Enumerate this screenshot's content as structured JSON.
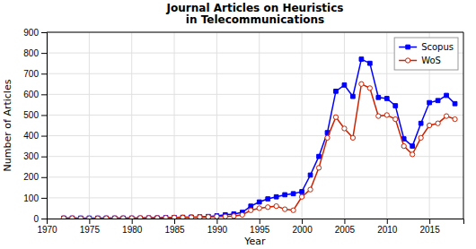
{
  "chart_data": {
    "type": "line",
    "title": "Journal Articles on Heuristics\nin Telecommunications",
    "xlabel": "Year",
    "ylabel": "Number of Articles",
    "x": [
      1972,
      1973,
      1974,
      1975,
      1976,
      1977,
      1978,
      1979,
      1980,
      1981,
      1982,
      1983,
      1984,
      1985,
      1986,
      1987,
      1988,
      1989,
      1990,
      1991,
      1992,
      1993,
      1994,
      1995,
      1996,
      1997,
      1998,
      1999,
      2000,
      2001,
      2002,
      2003,
      2004,
      2005,
      2006,
      2007,
      2008,
      2009,
      2010,
      2011,
      2012,
      2013,
      2014,
      2015,
      2016,
      2017,
      2018
    ],
    "series": [
      {
        "name": "Scopus",
        "color": "#0000FF",
        "marker": "square",
        "values": [
          2,
          2,
          2,
          2,
          2,
          2,
          2,
          2,
          2,
          2,
          3,
          3,
          4,
          5,
          6,
          7,
          8,
          10,
          13,
          18,
          22,
          30,
          60,
          80,
          95,
          105,
          115,
          120,
          130,
          210,
          300,
          415,
          615,
          645,
          590,
          770,
          750,
          585,
          580,
          545,
          385,
          350,
          460,
          560,
          570,
          595,
          555
        ]
      },
      {
        "name": "WoS",
        "color": "#CC2200",
        "marker": "circle",
        "values": [
          2,
          2,
          1,
          1,
          1,
          2,
          2,
          2,
          2,
          3,
          3,
          3,
          4,
          5,
          5,
          6,
          7,
          8,
          10,
          10,
          12,
          18,
          40,
          50,
          55,
          60,
          45,
          40,
          105,
          140,
          245,
          390,
          490,
          435,
          390,
          650,
          630,
          495,
          500,
          480,
          350,
          310,
          390,
          450,
          460,
          495,
          480
        ]
      }
    ],
    "xlim": [
      1970,
      2019
    ],
    "xticks": [
      1970,
      1975,
      1980,
      1985,
      1990,
      1995,
      2000,
      2005,
      2010,
      2015
    ],
    "ylim": [
      0,
      900
    ],
    "yticks": [
      0,
      100,
      200,
      300,
      400,
      500,
      600,
      700,
      800,
      900
    ],
    "grid": true,
    "legend": "upper right"
  }
}
